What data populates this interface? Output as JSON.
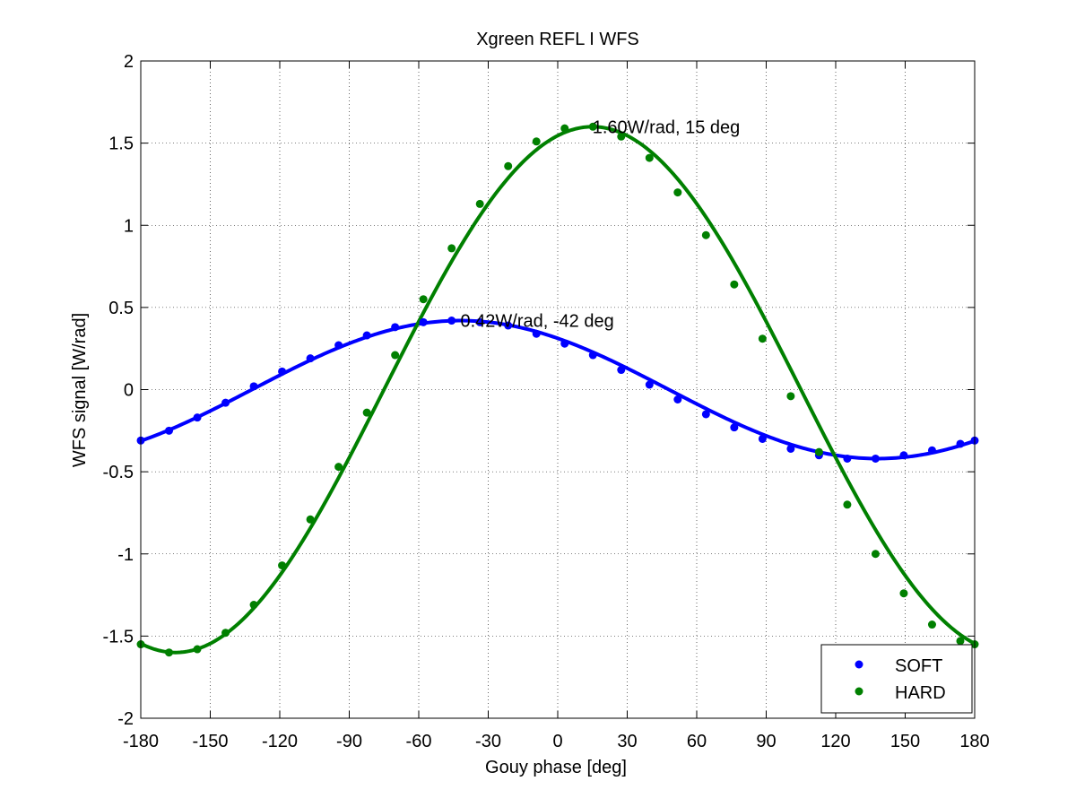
{
  "chart_data": {
    "type": "line",
    "title": "Xgreen REFL I WFS",
    "xlabel": "Gouy phase [deg]",
    "ylabel": "WFS signal [W/rad]",
    "xlim": [
      -180,
      180
    ],
    "ylim": [
      -2,
      2
    ],
    "xticks": [
      -180,
      -150,
      -120,
      -90,
      -60,
      -30,
      0,
      30,
      60,
      90,
      120,
      150,
      180
    ],
    "yticks": [
      -2,
      -1.5,
      -1,
      -0.5,
      0,
      0.5,
      1,
      1.5,
      2
    ],
    "xtick_labels": [
      "-180",
      "-150",
      "-120",
      "-90",
      "-60",
      "-30",
      "0",
      "30",
      "60",
      "90",
      "120",
      "150",
      "180"
    ],
    "ytick_labels": [
      "-2",
      "-1.5",
      "-1",
      "-0.5",
      "0",
      "0.5",
      "1",
      "1.5",
      "2"
    ],
    "grid": true,
    "legend_position": "bottom-right",
    "series": [
      {
        "name": "SOFT",
        "color": "#0000ff",
        "amplitude": 0.42,
        "peak_phase": -42,
        "markers_x": [
          -180,
          -167.8,
          -155.6,
          -143.4,
          -131.2,
          -119,
          -106.8,
          -94.6,
          -82.4,
          -70.2,
          -58,
          -45.8,
          -33.6,
          -21.4,
          -9.2,
          3,
          15.2,
          27.4,
          39.6,
          51.8,
          64,
          76.2,
          88.4,
          100.6,
          112.8,
          125,
          137.2,
          149.4,
          161.6,
          173.8,
          180
        ],
        "markers_y": [
          -0.31,
          -0.25,
          -0.17,
          -0.08,
          0.02,
          0.11,
          0.19,
          0.27,
          0.33,
          0.38,
          0.41,
          0.42,
          0.41,
          0.39,
          0.34,
          0.28,
          0.21,
          0.12,
          0.03,
          -0.06,
          -0.15,
          -0.23,
          -0.3,
          -0.36,
          -0.4,
          -0.42,
          -0.42,
          -0.4,
          -0.37,
          -0.33,
          -0.31
        ]
      },
      {
        "name": "HARD",
        "color": "#008000",
        "amplitude": 1.6,
        "peak_phase": 15,
        "markers_x": [
          -180,
          -167.8,
          -155.6,
          -143.4,
          -131.2,
          -119,
          -106.8,
          -94.6,
          -82.4,
          -70.2,
          -58,
          -45.8,
          -33.6,
          -21.4,
          -9.2,
          3,
          15.2,
          27.4,
          39.6,
          51.8,
          64,
          76.2,
          88.4,
          100.6,
          112.8,
          125,
          137.2,
          149.4,
          161.6,
          173.8,
          180
        ],
        "markers_y": [
          -1.55,
          -1.6,
          -1.58,
          -1.48,
          -1.31,
          -1.07,
          -0.79,
          -0.47,
          -0.14,
          0.21,
          0.55,
          0.86,
          1.13,
          1.36,
          1.51,
          1.59,
          1.6,
          1.54,
          1.41,
          1.2,
          0.94,
          0.64,
          0.31,
          -0.04,
          -0.38,
          -0.7,
          -1.0,
          -1.24,
          -1.43,
          -1.53,
          -1.55
        ]
      }
    ],
    "annotations": [
      {
        "text": "1.60W/rad, 15 deg",
        "x": 15,
        "y": 1.6
      },
      {
        "text": "0.42W/rad, -42 deg",
        "x": -42,
        "y": 0.42
      }
    ]
  }
}
